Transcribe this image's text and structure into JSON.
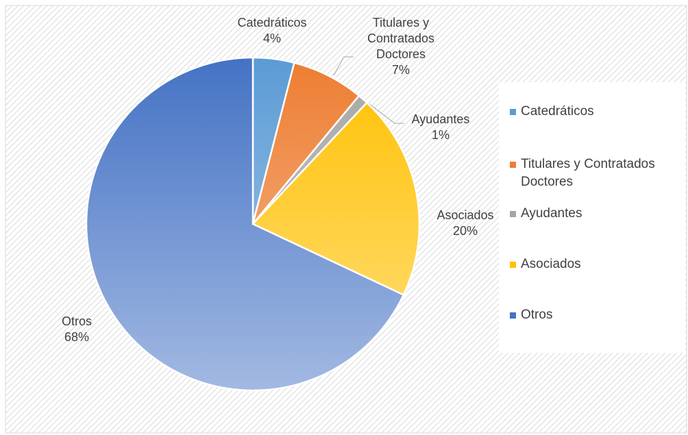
{
  "chart_data": {
    "type": "pie",
    "categories": [
      "Catedráticos",
      "Titulares y Contratados Doctores",
      "Ayudantes",
      "Asociados",
      "Otros"
    ],
    "values": [
      4,
      7,
      1,
      20,
      68
    ],
    "value_labels": [
      "4%",
      "7%",
      "1%",
      "20%",
      "68%"
    ],
    "colors": [
      "#5b9bd5",
      "#ed7d31",
      "#a5a5a5",
      "#ffc000",
      "#4472c4"
    ],
    "legend": "right"
  }
}
